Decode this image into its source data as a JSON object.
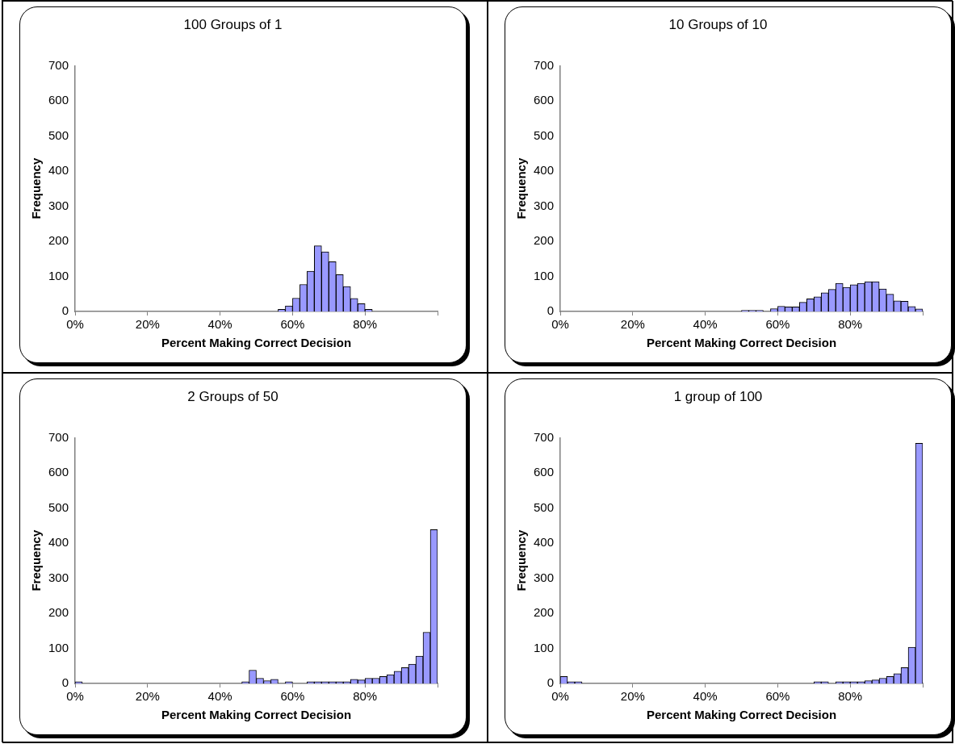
{
  "chart_data": [
    {
      "type": "histogram",
      "title": "100 Groups of 1",
      "xlabel": "Percent Making Correct Decision",
      "ylabel": "Frequency",
      "color": "#9999ff",
      "bins": [
        0,
        2,
        4,
        6,
        8,
        10,
        12,
        14,
        16,
        18,
        20,
        22,
        24,
        26,
        28,
        30,
        32,
        34,
        36,
        38,
        40,
        42,
        44,
        46,
        48,
        50,
        52,
        54,
        56,
        58,
        60,
        62,
        64,
        66,
        68,
        70,
        72,
        74,
        76,
        78,
        80,
        82,
        84,
        86,
        88,
        90,
        92,
        94,
        96,
        98,
        100
      ],
      "values": [
        0,
        0,
        0,
        0,
        0,
        0,
        0,
        0,
        0,
        0,
        0,
        0,
        0,
        0,
        0,
        0,
        0,
        0,
        0,
        0,
        0,
        0,
        0,
        0,
        0,
        0,
        0,
        0,
        6,
        16,
        38,
        77,
        115,
        187,
        170,
        142,
        105,
        71,
        37,
        22,
        6,
        0,
        0,
        0,
        0,
        0,
        0,
        0,
        0,
        0
      ],
      "xlim": [
        0,
        100
      ],
      "xticks": [
        {
          "value": 0,
          "label": "0%"
        },
        {
          "value": 20,
          "label": "20%"
        },
        {
          "value": 40,
          "label": "40%"
        },
        {
          "value": 60,
          "label": "60%"
        },
        {
          "value": 80,
          "label": "80%"
        },
        {
          "value": 100,
          "label": null
        }
      ],
      "ylim": [
        0,
        700
      ],
      "yticks": [
        0,
        100,
        200,
        300,
        400,
        500,
        600,
        700
      ],
      "grid": false,
      "legend": false
    },
    {
      "type": "histogram",
      "title": "10 Groups of 10",
      "xlabel": "Percent Making Correct Decision",
      "ylabel": "Frequency",
      "color": "#9999ff",
      "bins": [
        0,
        2,
        4,
        6,
        8,
        10,
        12,
        14,
        16,
        18,
        20,
        22,
        24,
        26,
        28,
        30,
        32,
        34,
        36,
        38,
        40,
        42,
        44,
        46,
        48,
        50,
        52,
        54,
        56,
        58,
        60,
        62,
        64,
        66,
        68,
        70,
        72,
        74,
        76,
        78,
        80,
        82,
        84,
        86,
        88,
        90,
        92,
        94,
        96,
        98,
        100
      ],
      "values": [
        0,
        0,
        0,
        0,
        0,
        0,
        0,
        0,
        0,
        0,
        0,
        0,
        0,
        0,
        0,
        0,
        0,
        0,
        0,
        0,
        0,
        0,
        0,
        0,
        0,
        3,
        3,
        3,
        0,
        8,
        15,
        13,
        13,
        26,
        36,
        42,
        53,
        63,
        80,
        69,
        76,
        80,
        85,
        85,
        64,
        49,
        30,
        29,
        14,
        7
      ],
      "xlim": [
        0,
        100
      ],
      "xticks": [
        {
          "value": 0,
          "label": "0%"
        },
        {
          "value": 20,
          "label": "20%"
        },
        {
          "value": 40,
          "label": "40%"
        },
        {
          "value": 60,
          "label": "60%"
        },
        {
          "value": 80,
          "label": "80%"
        },
        {
          "value": 100,
          "label": null
        }
      ],
      "ylim": [
        0,
        700
      ],
      "yticks": [
        0,
        100,
        200,
        300,
        400,
        500,
        600,
        700
      ],
      "grid": false,
      "legend": false
    },
    {
      "type": "histogram",
      "title": "2 Groups of 50",
      "xlabel": "Percent Making Correct Decision",
      "ylabel": "Frequency",
      "color": "#9999ff",
      "bins": [
        0,
        2,
        4,
        6,
        8,
        10,
        12,
        14,
        16,
        18,
        20,
        22,
        24,
        26,
        28,
        30,
        32,
        34,
        36,
        38,
        40,
        42,
        44,
        46,
        48,
        50,
        52,
        54,
        56,
        58,
        60,
        62,
        64,
        66,
        68,
        70,
        72,
        74,
        76,
        78,
        80,
        82,
        84,
        86,
        88,
        90,
        92,
        94,
        96,
        98,
        100
      ],
      "values": [
        5,
        0,
        0,
        0,
        0,
        0,
        0,
        0,
        0,
        0,
        0,
        0,
        0,
        0,
        0,
        0,
        0,
        0,
        0,
        0,
        0,
        0,
        0,
        5,
        38,
        15,
        8,
        12,
        0,
        5,
        0,
        0,
        5,
        5,
        5,
        5,
        5,
        5,
        12,
        10,
        15,
        15,
        20,
        25,
        35,
        45,
        55,
        78,
        146,
        438
      ],
      "xlim": [
        0,
        100
      ],
      "xticks": [
        {
          "value": 0,
          "label": "0%"
        },
        {
          "value": 20,
          "label": "20%"
        },
        {
          "value": 40,
          "label": "40%"
        },
        {
          "value": 60,
          "label": "60%"
        },
        {
          "value": 80,
          "label": "80%"
        },
        {
          "value": 100,
          "label": null
        }
      ],
      "ylim": [
        0,
        700
      ],
      "yticks": [
        0,
        100,
        200,
        300,
        400,
        500,
        600,
        700
      ],
      "grid": false,
      "legend": false
    },
    {
      "type": "histogram",
      "title": "1 group of 100",
      "xlabel": "Percent Making Correct Decision",
      "ylabel": "Frequency",
      "color": "#9999ff",
      "bins": [
        0,
        2,
        4,
        6,
        8,
        10,
        12,
        14,
        16,
        18,
        20,
        22,
        24,
        26,
        28,
        30,
        32,
        34,
        36,
        38,
        40,
        42,
        44,
        46,
        48,
        50,
        52,
        54,
        56,
        58,
        60,
        62,
        64,
        66,
        68,
        70,
        72,
        74,
        76,
        78,
        80,
        82,
        84,
        86,
        88,
        90,
        92,
        94,
        96,
        98,
        100
      ],
      "values": [
        20,
        5,
        5,
        0,
        0,
        0,
        0,
        0,
        0,
        0,
        0,
        0,
        0,
        0,
        0,
        0,
        0,
        0,
        0,
        0,
        0,
        0,
        0,
        0,
        0,
        0,
        0,
        0,
        0,
        0,
        0,
        0,
        0,
        0,
        0,
        5,
        5,
        0,
        5,
        5,
        5,
        5,
        8,
        10,
        15,
        20,
        28,
        45,
        103,
        684
      ],
      "xlim": [
        0,
        100
      ],
      "xticks": [
        {
          "value": 0,
          "label": "0%"
        },
        {
          "value": 20,
          "label": "20%"
        },
        {
          "value": 40,
          "label": "40%"
        },
        {
          "value": 60,
          "label": "60%"
        },
        {
          "value": 80,
          "label": "80%"
        },
        {
          "value": 100,
          "label": null
        }
      ],
      "ylim": [
        0,
        700
      ],
      "yticks": [
        0,
        100,
        200,
        300,
        400,
        500,
        600,
        700
      ],
      "grid": false,
      "legend": false
    }
  ]
}
